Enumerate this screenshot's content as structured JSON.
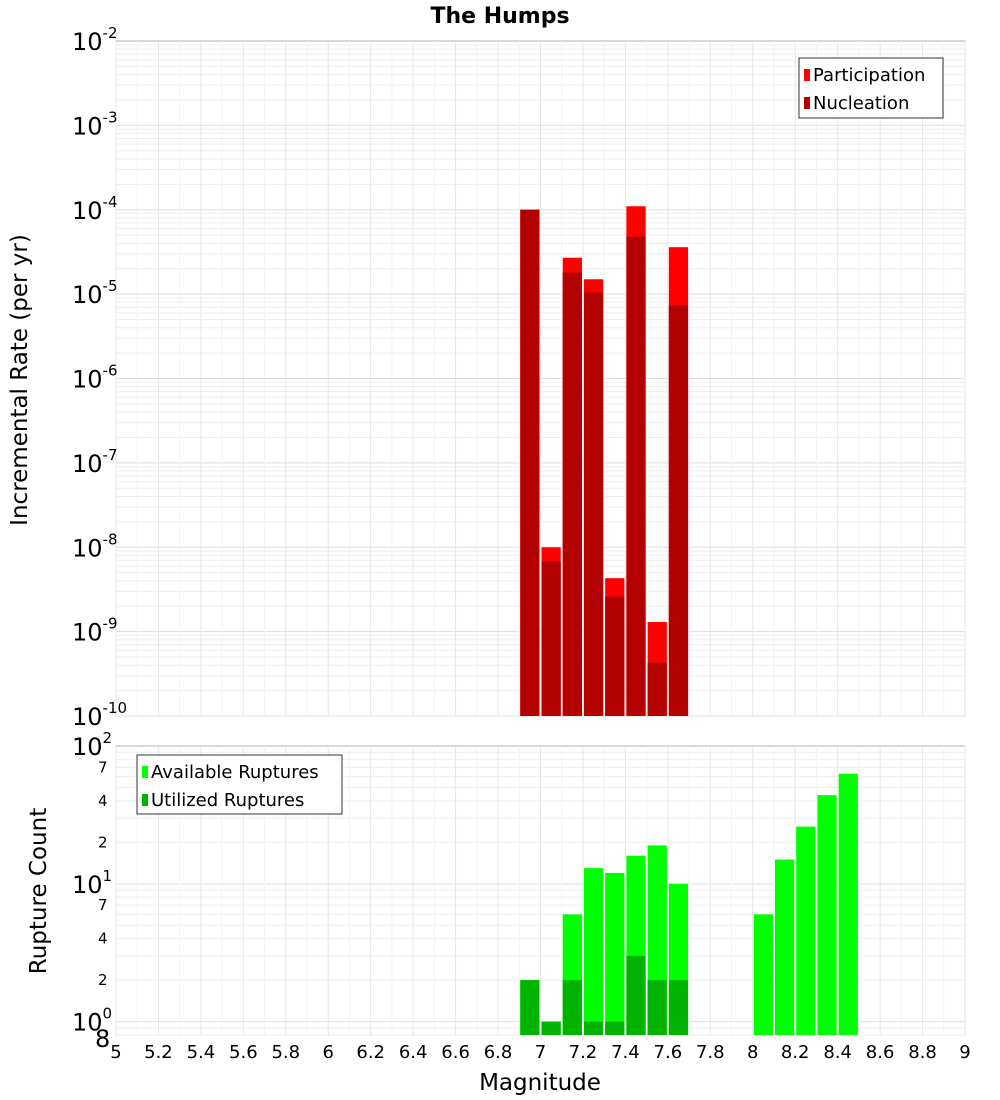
{
  "chart_data": [
    {
      "type": "bar",
      "title": "The Humps",
      "xlabel": "",
      "ylabel": "Incremental Rate (per yr)",
      "y_scale": "log",
      "xlim": [
        5,
        9
      ],
      "ylim": [
        1e-10,
        0.01
      ],
      "y_ticks": [
        {
          "base": "10",
          "exp": "-2"
        },
        {
          "base": "10",
          "exp": "-3"
        },
        {
          "base": "10",
          "exp": "-4"
        },
        {
          "base": "10",
          "exp": "-5"
        },
        {
          "base": "10",
          "exp": "-6"
        },
        {
          "base": "10",
          "exp": "-7"
        },
        {
          "base": "10",
          "exp": "-8"
        },
        {
          "base": "10",
          "exp": "-9"
        },
        {
          "base": "10",
          "exp": "-10"
        }
      ],
      "grid": true,
      "legend_position": "top-right",
      "bar_width": 0.1,
      "x": [
        6.95,
        7.05,
        7.15,
        7.25,
        7.35,
        7.45,
        7.55,
        7.65
      ],
      "series": [
        {
          "name": "Participation",
          "color": "#ff0000",
          "values": [
            0.0001,
            1e-08,
            2.7e-05,
            1.5e-05,
            4.3e-09,
            0.00011,
            1.3e-09,
            3.6e-05
          ]
        },
        {
          "name": "Nucleation",
          "color": "#b30000",
          "values": [
            0.0001,
            6.8e-09,
            1.8e-05,
            1.05e-05,
            2.6e-09,
            4.8e-05,
            4.3e-10,
            7.3e-06
          ]
        }
      ]
    },
    {
      "type": "bar",
      "title": "",
      "xlabel": "Magnitude",
      "ylabel": "Rupture Count",
      "y_scale": "log",
      "xlim": [
        5,
        9
      ],
      "ylim": [
        0.8,
        100
      ],
      "x_ticks": [
        "5",
        "5.2",
        "5.4",
        "5.6",
        "5.8",
        "6",
        "6.2",
        "6.4",
        "6.6",
        "6.8",
        "7",
        "7.2",
        "7.4",
        "7.6",
        "7.8",
        "8",
        "8.2",
        "8.4",
        "8.6",
        "8.8",
        "9"
      ],
      "y_ticks": [
        {
          "base": "10",
          "exp": "2"
        },
        {
          "base": "10",
          "exp": "1"
        },
        {
          "base": "10",
          "exp": "0"
        }
      ],
      "y_minor_labels": [
        {
          "label": "7",
          "value": 70
        },
        {
          "label": "4",
          "value": 40
        },
        {
          "label": "2",
          "value": 20
        },
        {
          "label": "7",
          "value": 7
        },
        {
          "label": "4",
          "value": 4
        },
        {
          "label": "2",
          "value": 2
        },
        {
          "label": "8",
          "value": 0.8
        }
      ],
      "grid": true,
      "legend_position": "top-left",
      "bar_width": 0.1,
      "x": [
        6.95,
        7.05,
        7.15,
        7.25,
        7.35,
        7.45,
        7.55,
        7.65,
        8.05,
        8.15,
        8.25,
        8.35,
        8.45
      ],
      "series": [
        {
          "name": "Available Ruptures",
          "color": "#00ff00",
          "values": [
            2,
            1,
            6,
            13,
            12,
            16,
            19,
            10,
            6,
            15,
            26,
            44,
            63
          ]
        },
        {
          "name": "Utilized Ruptures",
          "color": "#00b300",
          "values": [
            2,
            1,
            2,
            1,
            1,
            3,
            2,
            2,
            0,
            0,
            0,
            0,
            0
          ]
        }
      ]
    }
  ]
}
